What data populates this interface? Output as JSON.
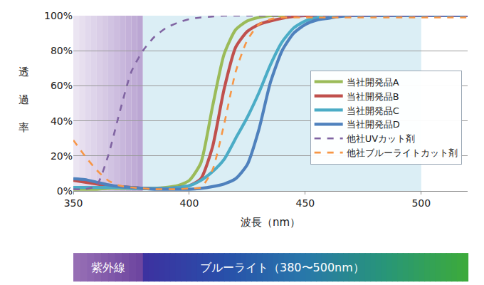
{
  "chart_data": {
    "type": "line",
    "x_label": "波長（nm）",
    "y_label": "透過率",
    "x": [
      350,
      355,
      360,
      365,
      370,
      375,
      380,
      385,
      390,
      395,
      400,
      405,
      410,
      415,
      420,
      425,
      430,
      435,
      440,
      445,
      450,
      455,
      460,
      465,
      470,
      475,
      480,
      485,
      490,
      495,
      500,
      505,
      510,
      515,
      520
    ],
    "series": [
      {
        "name": "当社開発品A",
        "color": "#9bbb59",
        "line_style": "solid",
        "values": [
          1,
          1,
          1,
          1.5,
          1.5,
          1.5,
          1.5,
          1.5,
          2,
          3,
          6,
          16,
          48,
          78,
          92,
          97,
          99,
          100,
          100,
          100,
          100,
          100,
          100,
          100,
          100,
          100,
          100,
          100,
          100,
          100,
          100,
          100,
          100,
          100,
          100
        ]
      },
      {
        "name": "当社開発品B",
        "color": "#c0504d",
        "line_style": "solid",
        "values": [
          6,
          5,
          4,
          3,
          2.5,
          2,
          1.5,
          1.5,
          1.5,
          2,
          3,
          7,
          25,
          58,
          82,
          91,
          95,
          97,
          98.5,
          99.5,
          100,
          100,
          100,
          100,
          100,
          100,
          100,
          100,
          100,
          100,
          100,
          100,
          100,
          100,
          100
        ]
      },
      {
        "name": "当社開発品C",
        "color": "#4bacc6",
        "line_style": "solid",
        "values": [
          2,
          2,
          2,
          2,
          2,
          1.5,
          1.5,
          1.5,
          1.5,
          2,
          3,
          6,
          11,
          18,
          30,
          42,
          56,
          72,
          85,
          93,
          97,
          99,
          100,
          100,
          100,
          100,
          100,
          100,
          100,
          100,
          100,
          100,
          100,
          100,
          100
        ]
      },
      {
        "name": "当社開発品D",
        "color": "#4f81bd",
        "line_style": "solid",
        "values": [
          7,
          6.5,
          5,
          3.5,
          2.5,
          2,
          1.5,
          1,
          1,
          1,
          1,
          1.5,
          2.5,
          4,
          7,
          15,
          35,
          62,
          80,
          90,
          95,
          97.5,
          98.5,
          99.5,
          100,
          100,
          100,
          100,
          100,
          100,
          100,
          100,
          100,
          100,
          100
        ]
      },
      {
        "name": "他社UVカット剤",
        "color": "#8064a2",
        "line_style": "dashed",
        "values": [
          1,
          1,
          3,
          20,
          45,
          68,
          80,
          88,
          93,
          96,
          98,
          99,
          99.5,
          100,
          100,
          100,
          100,
          100,
          100,
          100,
          100,
          100,
          100,
          100,
          100,
          100,
          100,
          100,
          100,
          100,
          100,
          100,
          100,
          100,
          100
        ]
      },
      {
        "name": "他社ブルーライトカット剤",
        "color": "#f79646",
        "line_style": "dashed",
        "values": [
          29,
          20,
          12,
          6,
          3,
          2,
          1.5,
          1,
          1,
          1,
          1.5,
          2,
          12,
          38,
          68,
          86,
          95,
          98,
          99,
          99,
          99,
          99,
          99,
          99,
          99,
          99,
          99,
          99,
          99,
          99,
          99,
          99,
          99,
          99,
          99
        ]
      }
    ],
    "xlim": [
      350,
      520
    ],
    "xticks": [
      350,
      400,
      450,
      500
    ],
    "ylim": [
      0,
      100
    ],
    "yticks": [
      {
        "value": 0,
        "label": "0%"
      },
      {
        "value": 20,
        "label": "20%"
      },
      {
        "value": 40,
        "label": "40%"
      },
      {
        "value": 60,
        "label": "60%"
      },
      {
        "value": 80,
        "label": "80%"
      },
      {
        "value": 100,
        "label": "100%"
      }
    ],
    "grid": true,
    "legend": "right",
    "bands": [
      {
        "label": "紫外線",
        "from": 350,
        "to": 380,
        "color": "#b9a3d2"
      },
      {
        "label": "ブルーライト（380〜500nm）",
        "from": 380,
        "to": 500,
        "color": "#dbeef5"
      }
    ]
  }
}
